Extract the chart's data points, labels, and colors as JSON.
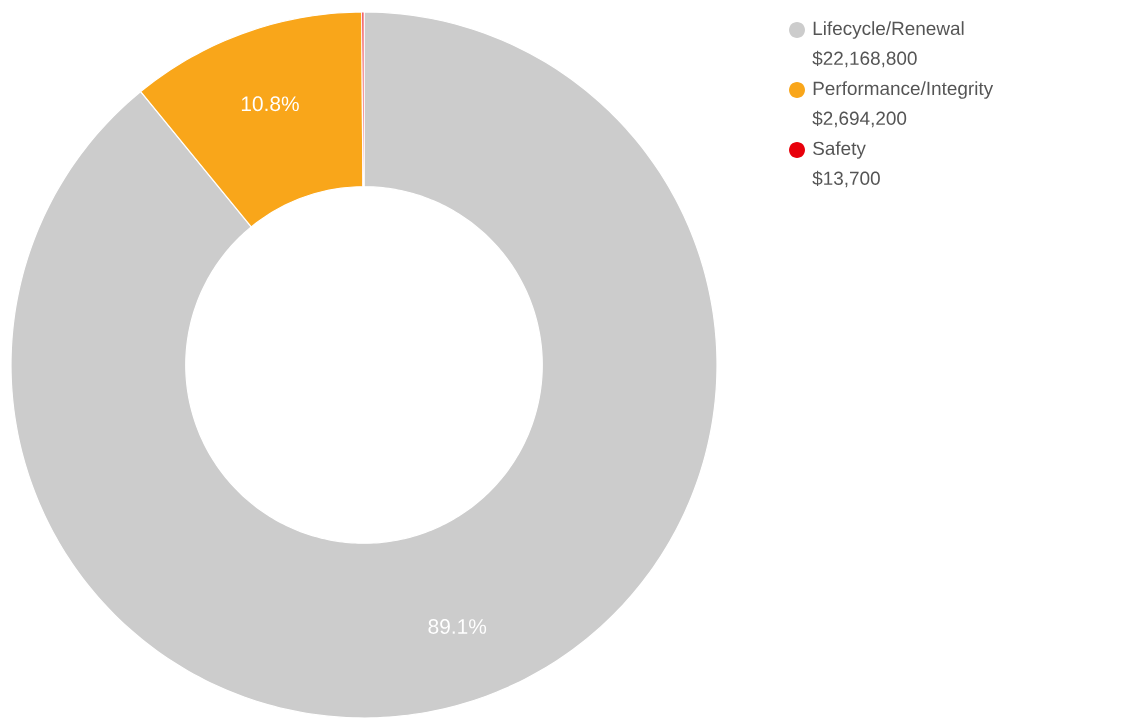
{
  "chart_data": {
    "type": "donut",
    "categories": [
      "Lifecycle/Renewal",
      "Performance/Integrity",
      "Safety"
    ],
    "values": [
      89.1,
      10.8,
      0.1
    ],
    "colors": [
      "#cccccc",
      "#f9a61a",
      "#e8000b"
    ],
    "value_labels": [
      "89.1%",
      "10.8%",
      null
    ],
    "annotations": [
      "$22,168,800",
      "$2,694,200",
      "$13,700"
    ],
    "legend": "top right"
  }
}
